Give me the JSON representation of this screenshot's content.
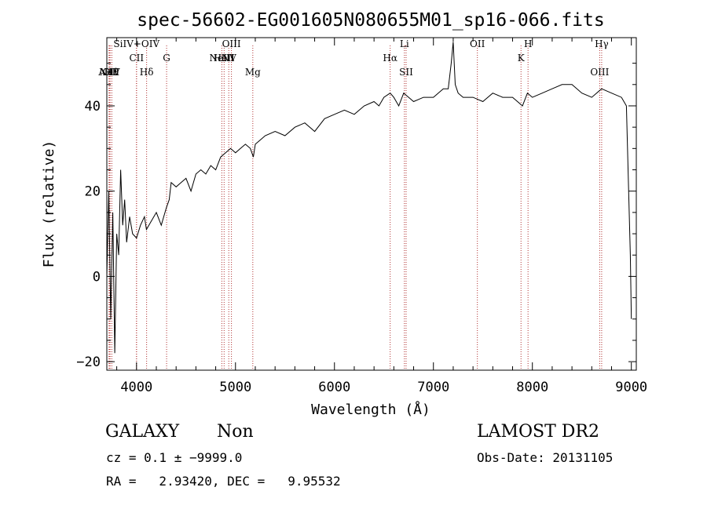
{
  "chart_data": {
    "type": "line",
    "title": "spec-56602-EG001605N080655M01_sp16-066.fits",
    "xlabel": "Wavelength (Å)",
    "ylabel": "Flux (relative)",
    "xlim": [
      3700,
      9050
    ],
    "ylim": [
      -22,
      56
    ],
    "xticks": [
      4000,
      5000,
      6000,
      7000,
      8000,
      9000
    ],
    "yticks": [
      -20,
      0,
      20,
      40
    ],
    "line_color": "#000000",
    "marker_color": "#b03030",
    "spectrum": {
      "x": [
        3700,
        3720,
        3740,
        3760,
        3780,
        3800,
        3820,
        3840,
        3860,
        3880,
        3900,
        3930,
        3960,
        4000,
        4040,
        4080,
        4100,
        4150,
        4200,
        4250,
        4300,
        4330,
        4350,
        4400,
        4450,
        4500,
        4550,
        4600,
        4650,
        4700,
        4750,
        4800,
        4850,
        4900,
        4950,
        5000,
        5050,
        5100,
        5150,
        5180,
        5200,
        5250,
        5300,
        5400,
        5500,
        5600,
        5700,
        5800,
        5900,
        6000,
        6100,
        6200,
        6300,
        6400,
        6450,
        6500,
        6563,
        6600,
        6650,
        6700,
        6750,
        6800,
        6900,
        7000,
        7100,
        7150,
        7180,
        7200,
        7220,
        7250,
        7300,
        7400,
        7500,
        7600,
        7700,
        7800,
        7900,
        7950,
        8000,
        8100,
        8200,
        8300,
        8400,
        8500,
        8600,
        8700,
        8800,
        8900,
        8950,
        8990,
        9000
      ],
      "y": [
        0,
        20,
        -10,
        15,
        -18,
        10,
        5,
        25,
        12,
        18,
        8,
        14,
        10,
        9,
        12,
        14,
        11,
        13,
        15,
        12,
        16,
        18,
        22,
        21,
        22,
        23,
        20,
        24,
        25,
        24,
        26,
        25,
        28,
        29,
        30,
        29,
        30,
        31,
        30,
        28,
        31,
        32,
        33,
        34,
        33,
        35,
        36,
        34,
        37,
        38,
        39,
        38,
        40,
        41,
        40,
        42,
        43,
        42,
        40,
        43,
        42,
        41,
        42,
        42,
        44,
        44,
        50,
        55,
        45,
        43,
        42,
        42,
        41,
        43,
        42,
        42,
        40,
        43,
        42,
        43,
        44,
        45,
        45,
        43,
        42,
        44,
        43,
        42,
        40,
        5,
        -10
      ]
    },
    "lines": [
      {
        "label": "AlIII",
        "w": 3722,
        "row": 3
      },
      {
        "label": "NeV",
        "w": 3727,
        "row": 3
      },
      {
        "label": "OII",
        "w": 3733,
        "row": 3
      },
      {
        "label": "Hθ",
        "w": 3750,
        "row": 3
      },
      {
        "label": "SiIV+OIV",
        "w": 4000,
        "row": 0
      },
      {
        "label": "CII",
        "w": 4000,
        "row": 1
      },
      {
        "label": "Hδ",
        "w": 4102,
        "row": 2
      },
      {
        "label": "G",
        "w": 4304,
        "row": 1
      },
      {
        "label": "OIII",
        "w": 4959,
        "row": 0
      },
      {
        "label": "NeIII",
        "w": 4862,
        "row": 1
      },
      {
        "label": "HeII",
        "w": 4885,
        "row": 1
      },
      {
        "label": "NV",
        "w": 4932,
        "row": 1
      },
      {
        "label": "Mg",
        "w": 5175,
        "row": 2
      },
      {
        "label": "Li",
        "w": 6707,
        "row": 0
      },
      {
        "label": "Hα",
        "w": 6563,
        "row": 1
      },
      {
        "label": "SII",
        "w": 6724,
        "row": 2
      },
      {
        "label": "OII",
        "w": 7444,
        "row": 0
      },
      {
        "label": "K",
        "w": 7885,
        "row": 1
      },
      {
        "label": "H",
        "w": 7956,
        "row": 0
      },
      {
        "label": "Hγ",
        "w": 8700,
        "row": 0
      },
      {
        "label": "OIII",
        "w": 8680,
        "row": 2
      }
    ]
  },
  "info": {
    "class": "GALAXY",
    "subclass": "Non",
    "survey": "LAMOST DR2",
    "cz": "cz = 0.1 ± −9999.0",
    "obsdate": "Obs-Date: 20131105",
    "radec": "RA =   2.93420, DEC =   9.95532"
  }
}
